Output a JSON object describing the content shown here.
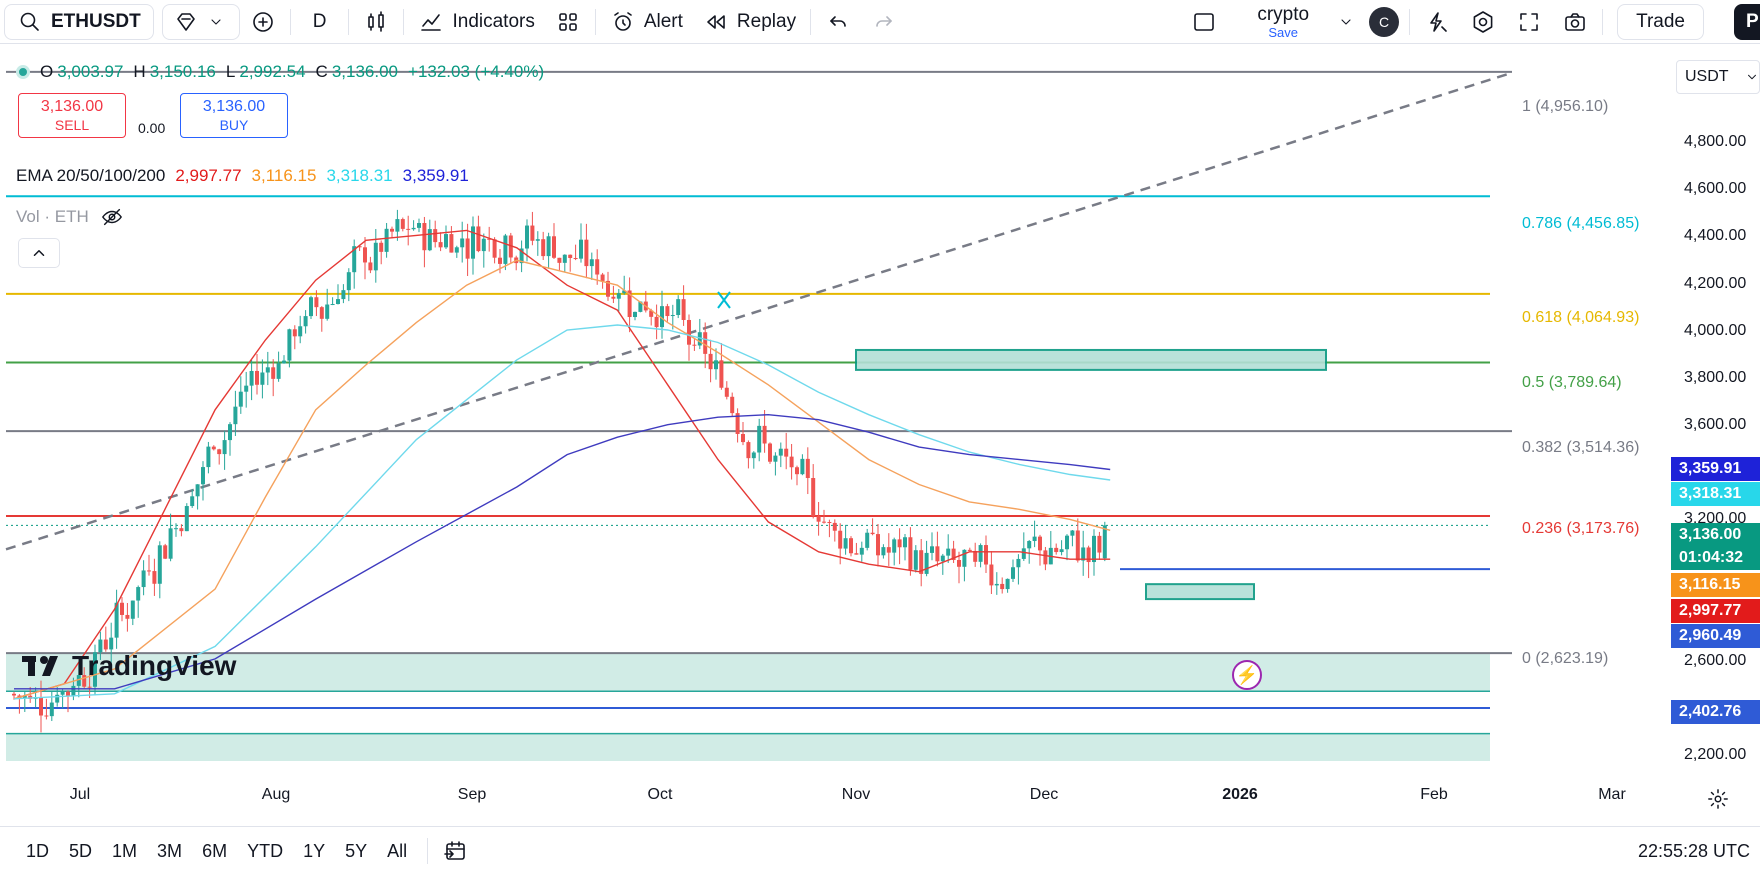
{
  "toolbar": {
    "symbol": "ETHUSDT",
    "interval": "D",
    "indicators_label": "Indicators",
    "alert_label": "Alert",
    "replay_label": "Replay",
    "layout_name": "crypto",
    "layout_save": "Save",
    "avatar_letter": "C",
    "trade_label": "Trade",
    "publish_letter": "P"
  },
  "legend": {
    "ohlc": {
      "o_label": "O",
      "o": "3,003.97",
      "h_label": "H",
      "h": "3,150.16",
      "l_label": "L",
      "l": "2,992.54",
      "c_label": "C",
      "c": "3,136.00",
      "change": "+132.03 (+4.40%)"
    },
    "sell_price": "3,136.00",
    "sell_label": "SELL",
    "spread": "0.00",
    "buy_price": "3,136.00",
    "buy_label": "BUY",
    "ema_title": "EMA 20/50/100/200",
    "ema_values": [
      "2,997.77",
      "3,116.15",
      "3,318.31",
      "3,359.91"
    ],
    "vol_label": "Vol · ETH"
  },
  "currency": "USDT",
  "price_axis": [
    "4,800.00",
    "4,600.00",
    "4,400.00",
    "4,200.00",
    "4,000.00",
    "3,800.00",
    "3,600.00",
    "3,200.00",
    "2,600.00",
    "2,200.00"
  ],
  "price_tags": [
    {
      "value": "3,359.91",
      "color": "#1e22d8"
    },
    {
      "value": "3,318.31",
      "color": "#28d7ea"
    },
    {
      "value": "3,136.00",
      "color": "#089981"
    },
    {
      "value": "01:04:32",
      "color": "#089981"
    },
    {
      "value": "3,116.15",
      "color": "#f7931a"
    },
    {
      "value": "2,997.77",
      "color": "#e21b1b"
    },
    {
      "value": "2,960.49",
      "color": "#2f5bd6"
    },
    {
      "value": "2,402.76",
      "color": "#2f5bd6"
    }
  ],
  "fib_levels": [
    {
      "label": "1 (4,956.10)",
      "color": "#787b86"
    },
    {
      "label": "0.786 (4,456.85)",
      "color": "#00bcd4"
    },
    {
      "label": "0.618 (4,064.93)",
      "color": "#e6b800"
    },
    {
      "label": "0.5 (3,789.64)",
      "color": "#43a047"
    },
    {
      "label": "0.382 (3,514.36)",
      "color": "#787b86"
    },
    {
      "label": "0.236 (3,173.76)",
      "color": "#e53935"
    },
    {
      "label": "0 (2,623.19)",
      "color": "#787b86"
    }
  ],
  "time_axis": [
    "Jul",
    "Aug",
    "Sep",
    "Oct",
    "Nov",
    "Dec",
    "2026",
    "Feb",
    "Mar"
  ],
  "watermark": "TradingView",
  "ranges": [
    "1D",
    "5D",
    "1M",
    "3M",
    "6M",
    "YTD",
    "1Y",
    "5Y",
    "All"
  ],
  "clock": "22:55:28 UTC",
  "chart_data": {
    "type": "candlestick",
    "symbol": "ETHUSDT",
    "interval": "1D",
    "ylim": [
      2130,
      5060
    ],
    "series": [
      {
        "name": "EMA 20",
        "color": "#e53935",
        "x": [
          0,
          10,
          20,
          30,
          40,
          50,
          60,
          70,
          80,
          90,
          100,
          110,
          120,
          130,
          140,
          150,
          160,
          170,
          180,
          190,
          200,
          210,
          218
        ],
        "values": [
          2440,
          2500,
          2800,
          3200,
          3600,
          3880,
          4120,
          4280,
          4300,
          4320,
          4250,
          4100,
          4000,
          3700,
          3400,
          3150,
          3030,
          2980,
          2950,
          3030,
          3030,
          3000,
          3000
        ]
      },
      {
        "name": "EMA 50",
        "color": "#f5a25d",
        "x": [
          0,
          20,
          40,
          50,
          60,
          70,
          80,
          90,
          100,
          110,
          120,
          130,
          140,
          150,
          160,
          170,
          180,
          190,
          200,
          210,
          218
        ],
        "values": [
          2440,
          2560,
          2880,
          3250,
          3600,
          3780,
          3950,
          4100,
          4200,
          4150,
          4100,
          3950,
          3830,
          3700,
          3550,
          3400,
          3300,
          3230,
          3200,
          3160,
          3116
        ]
      },
      {
        "name": "EMA 100",
        "color": "#6fd9ec",
        "x": [
          0,
          20,
          40,
          60,
          80,
          100,
          110,
          120,
          130,
          140,
          150,
          160,
          170,
          180,
          190,
          200,
          210,
          218
        ],
        "values": [
          2440,
          2460,
          2650,
          3050,
          3480,
          3800,
          3920,
          3940,
          3920,
          3870,
          3780,
          3670,
          3580,
          3500,
          3430,
          3380,
          3340,
          3318
        ]
      },
      {
        "name": "EMA 200",
        "color": "#3f3bbf",
        "x": [
          0,
          20,
          40,
          60,
          80,
          100,
          110,
          120,
          130,
          140,
          150,
          160,
          170,
          180,
          190,
          200,
          210,
          218
        ],
        "values": [
          2480,
          2480,
          2600,
          2840,
          3070,
          3290,
          3420,
          3490,
          3540,
          3570,
          3580,
          3560,
          3510,
          3450,
          3420,
          3400,
          3380,
          3360
        ]
      }
    ],
    "ohlc_last": {
      "open": 3003.97,
      "high": 3150.16,
      "low": 2992.54,
      "close": 3136.0,
      "change": 132.03,
      "change_pct": 4.4
    }
  }
}
